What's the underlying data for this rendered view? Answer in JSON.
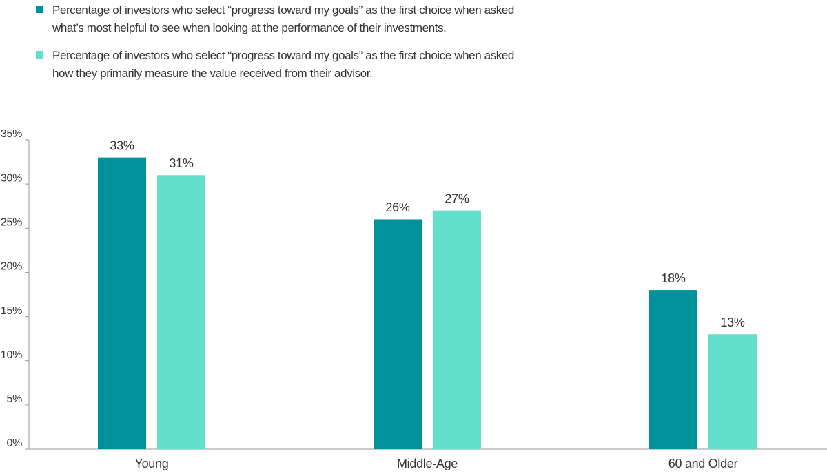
{
  "chart_data": {
    "type": "bar",
    "categories": [
      "Young",
      "Middle-Age",
      "60 and Older"
    ],
    "series": [
      {
        "name": "Percentage of investors who select “progress toward my goals” as the first choice when asked what’s most helpful to see when looking at the performance of their investments.",
        "color": "#00929a",
        "values": [
          33,
          26,
          18
        ],
        "value_labels": [
          "33%",
          "26%",
          "18%"
        ]
      },
      {
        "name": "Percentage of investors who select “progress toward my goals” as the first choice when asked how they primarily measure the value received from their advisor.",
        "color": "#62e0cc",
        "values": [
          31,
          27,
          13
        ],
        "value_labels": [
          "31%",
          "27%",
          "13%"
        ]
      }
    ],
    "ylim": [
      0,
      35
    ],
    "yticks": [
      {
        "value": 0,
        "label": "0%"
      },
      {
        "value": 5,
        "label": "5%"
      },
      {
        "value": 10,
        "label": "10%"
      },
      {
        "value": 15,
        "label": "15%"
      },
      {
        "value": 20,
        "label": "20%"
      },
      {
        "value": 25,
        "label": "25%"
      },
      {
        "value": 30,
        "label": "30%"
      },
      {
        "value": 35,
        "label": "35%"
      }
    ],
    "legend": "top-left"
  }
}
